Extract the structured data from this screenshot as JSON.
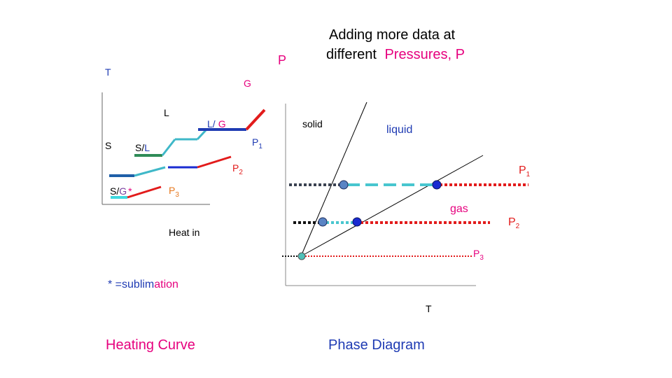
{
  "colors": {
    "black": "#000000",
    "magenta": "#e6007e",
    "blue": "#1f3bb3",
    "teal": "#3fb8c8",
    "green": "#2e8b57",
    "red": "#e21b1b",
    "orange": "#e6781e",
    "navy": "#333366",
    "purple": "#7a3fa0",
    "cyan_line": "#48c6cf",
    "dot_blue_grey": "#5a84c4",
    "dot_navy": "#1a2bd1",
    "dot_teal": "#50c0b8",
    "dark_dotted": "#3a4150"
  },
  "title": {
    "line1": "Adding more data at",
    "line2_prefix": "different",
    "line2_highlight": "Pressures, P"
  },
  "heating_curve": {
    "label_P": "P",
    "label_T": "T",
    "label_G": "G",
    "label_L": "L",
    "label_S": "S",
    "label_SL_S": "S/",
    "label_SL_L": "L",
    "label_LG_L": "L/",
    "label_LG_G": "G",
    "label_SG_S": "S/",
    "label_SG_G": "G",
    "label_SG_star": "*",
    "p1_main": "P",
    "p1_sub": "1",
    "p2_main": "P",
    "p2_sub": "2",
    "p3_main": "P",
    "p3_sub": "3",
    "x_label": "Heat in",
    "footnote_star": "* ",
    "footnote_eq": "=sublim",
    "footnote_tail": "ation",
    "caption": "Heating Curve"
  },
  "phase_diagram": {
    "solid": "solid",
    "liquid": "liquid",
    "gas": "gas",
    "p1_main": "P",
    "p1_sub": "1",
    "p2_main": "P",
    "p2_sub": "2",
    "p3_main": "P",
    "p3_sub": "3",
    "x_label": "T",
    "caption": "Phase Diagram"
  }
}
